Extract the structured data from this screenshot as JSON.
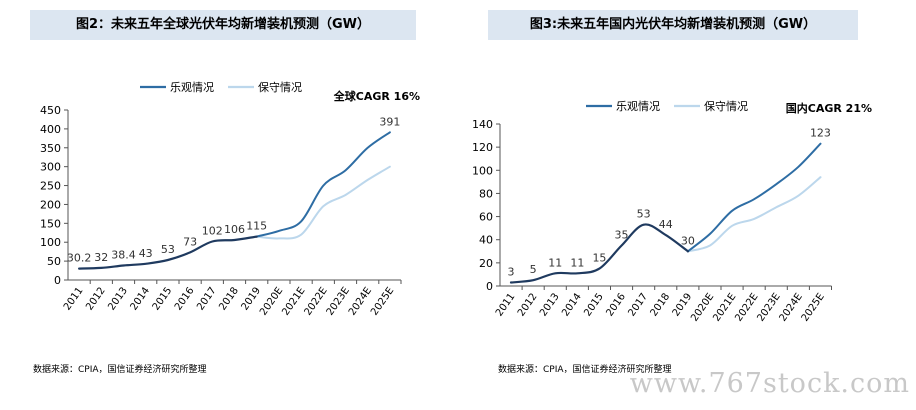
{
  "left_panel": {
    "title": "图2：未来五年全球光伏年均新增装机预测（GW）",
    "source": "数据来源：CPIA，国信证券经济研究所整理"
  },
  "right_panel": {
    "title": "图3:未来五年国内光伏年均新增装机预测（GW）",
    "source": "数据来源：CPIA，国信证券经济研究所整理"
  },
  "watermark": "www.767stock.com",
  "colors": {
    "optimistic": "#2e6da4",
    "conservative": "#bcd7ec",
    "historical": "#1f3a5f",
    "title_bg": "#dce6f1"
  },
  "chart_data": [
    {
      "type": "line",
      "title": "图2：未来五年全球光伏年均新增装机预测（GW）",
      "annotation": "全球CAGR 16%",
      "categories": [
        "2011",
        "2012",
        "2013",
        "2014",
        "2015",
        "2016",
        "2017",
        "2018",
        "2019",
        "2020E",
        "2021E",
        "2022E",
        "2023E",
        "2024E",
        "2025E"
      ],
      "ylim": [
        0,
        450
      ],
      "yticks": [
        0,
        50,
        100,
        150,
        200,
        250,
        300,
        350,
        400,
        450
      ],
      "legend_position": "top",
      "series": [
        {
          "name": "乐观情况",
          "values": [
            null,
            null,
            null,
            null,
            null,
            null,
            null,
            null,
            115,
            130,
            155,
            250,
            290,
            350,
            391
          ]
        },
        {
          "name": "保守情况",
          "values": [
            null,
            null,
            null,
            null,
            null,
            null,
            null,
            null,
            115,
            110,
            120,
            195,
            225,
            265,
            300
          ]
        },
        {
          "values": [
            30.2,
            32,
            38.4,
            43,
            53,
            73,
            102,
            106,
            115,
            null,
            null,
            null,
            null,
            null,
            null
          ]
        }
      ],
      "data_labels": [
        {
          "index": 0,
          "text": "30.2"
        },
        {
          "index": 1,
          "text": "32"
        },
        {
          "index": 2,
          "text": "38.4"
        },
        {
          "index": 3,
          "text": "43"
        },
        {
          "index": 4,
          "text": "53"
        },
        {
          "index": 5,
          "text": "73"
        },
        {
          "index": 6,
          "text": "102"
        },
        {
          "index": 7,
          "text": "106"
        },
        {
          "index": 8,
          "text": "115"
        },
        {
          "index": 14,
          "text": "391"
        }
      ]
    },
    {
      "type": "line",
      "title": "图3:未来五年国内光伏年均新增装机预测（GW）",
      "annotation": "国内CAGR 21%",
      "categories": [
        "2011",
        "2012",
        "2013",
        "2014",
        "2015",
        "2016",
        "2017",
        "2018",
        "2019",
        "2020E",
        "2021E",
        "2022E",
        "2023E",
        "2024E",
        "2025E"
      ],
      "ylim": [
        0,
        140
      ],
      "yticks": [
        0,
        20,
        40,
        60,
        80,
        100,
        120,
        140
      ],
      "legend_position": "top",
      "series": [
        {
          "name": "乐观情况",
          "values": [
            null,
            null,
            null,
            null,
            null,
            null,
            null,
            null,
            30,
            45,
            65,
            75,
            88,
            103,
            123
          ]
        },
        {
          "name": "保守情况",
          "values": [
            null,
            null,
            null,
            null,
            null,
            null,
            null,
            null,
            30,
            35,
            52,
            58,
            68,
            78,
            94
          ]
        },
        {
          "values": [
            3,
            5,
            11,
            11,
            15,
            35,
            53,
            44,
            30,
            null,
            null,
            null,
            null,
            null,
            null
          ]
        }
      ],
      "data_labels": [
        {
          "index": 0,
          "text": "3"
        },
        {
          "index": 1,
          "text": "5"
        },
        {
          "index": 2,
          "text": "11"
        },
        {
          "index": 3,
          "text": "11"
        },
        {
          "index": 4,
          "text": "15"
        },
        {
          "index": 5,
          "text": "35"
        },
        {
          "index": 6,
          "text": "53"
        },
        {
          "index": 7,
          "text": "44"
        },
        {
          "index": 8,
          "text": "30"
        },
        {
          "index": 14,
          "text": "123"
        }
      ]
    }
  ]
}
